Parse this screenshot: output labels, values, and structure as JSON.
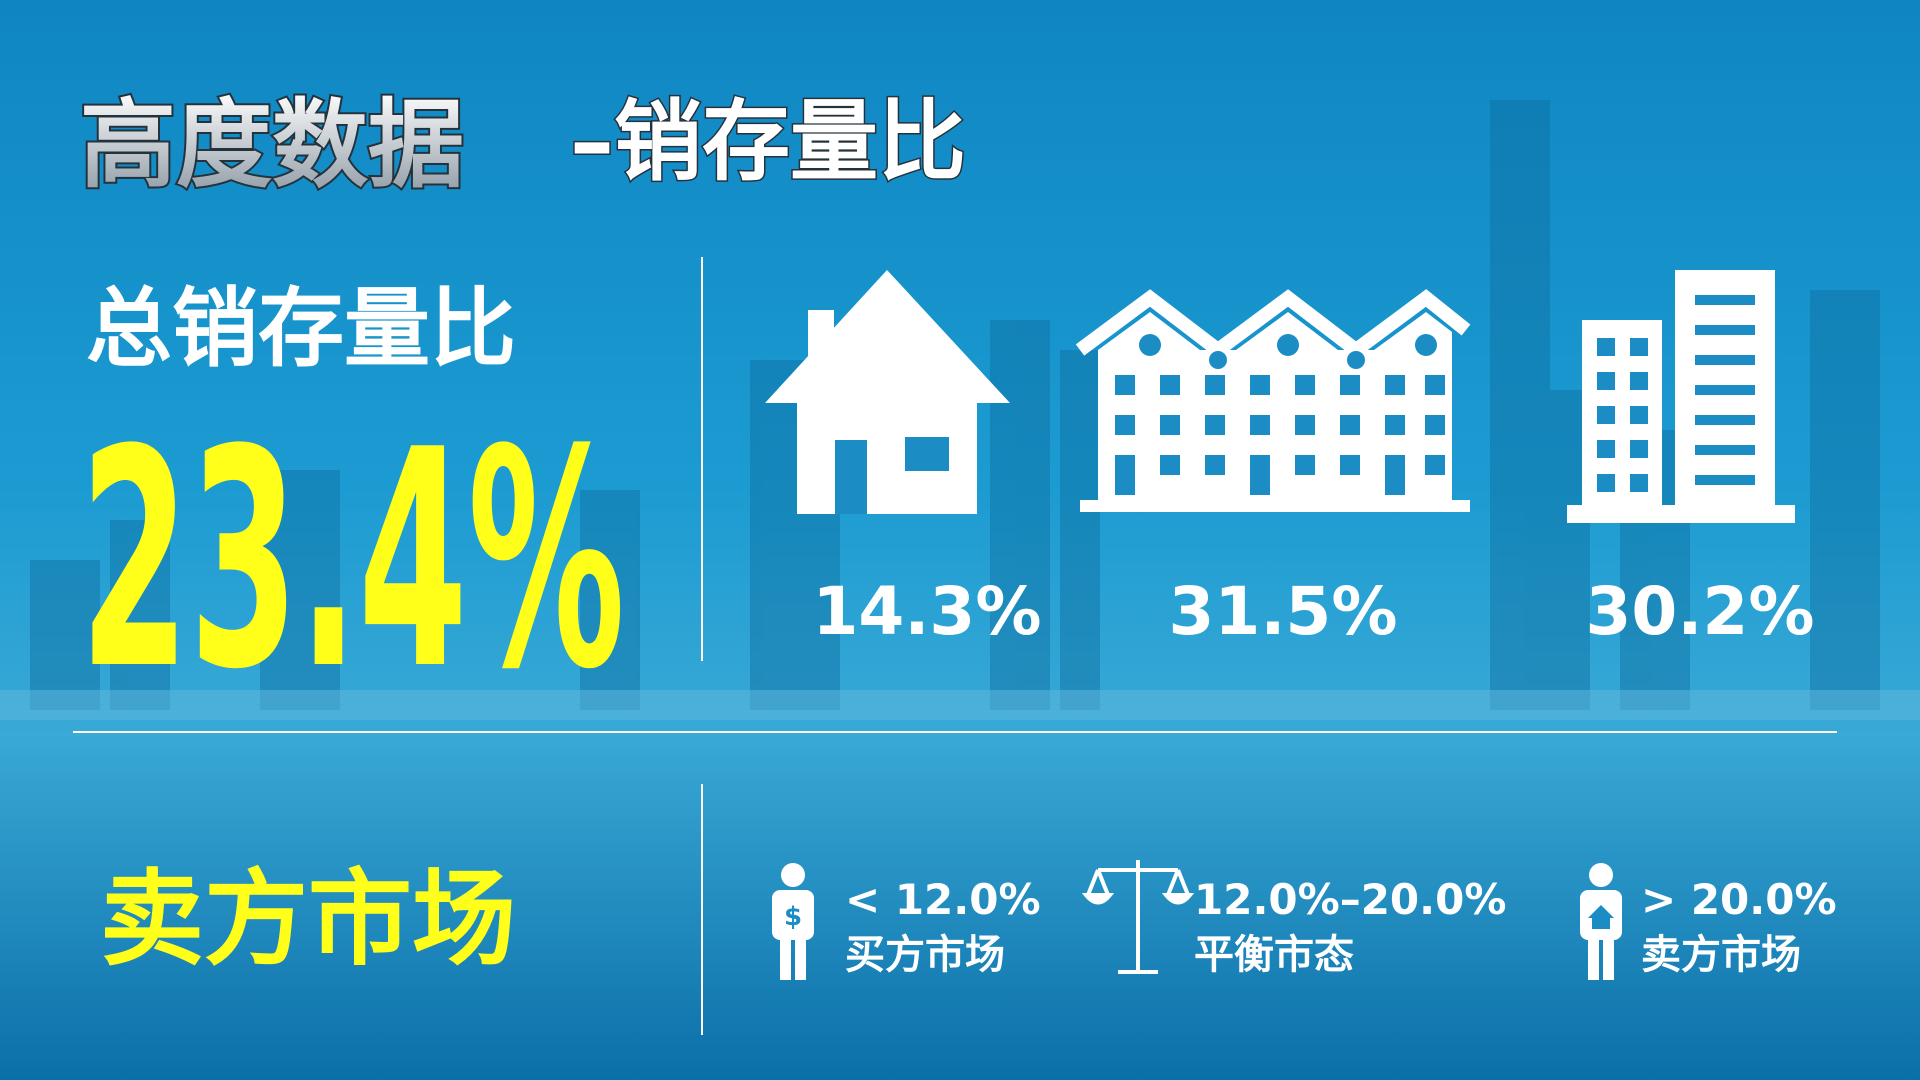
{
  "header": {
    "title": "高度数据",
    "subtitle": "–销存量比"
  },
  "summary": {
    "label": "总销存量比",
    "value": "23.4%",
    "status": "卖方市场"
  },
  "categories": [
    {
      "value": "14.3%"
    },
    {
      "value": "31.5%"
    },
    {
      "value": "30.2%"
    }
  ],
  "legend": [
    {
      "range": "< 12.0%",
      "label": "买方市场"
    },
    {
      "range": "12.0%–20.0%",
      "label": "平衡市态"
    },
    {
      "range": "> 20.0%",
      "label": "卖方市场"
    }
  ]
}
